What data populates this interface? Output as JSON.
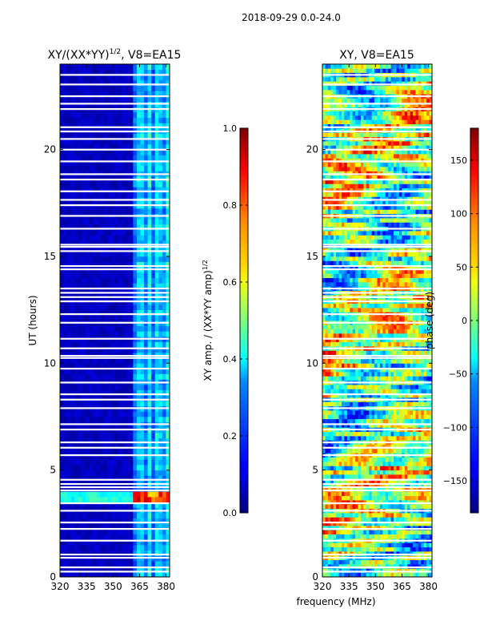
{
  "figure": {
    "suptitle": "2018-09-29 0.0-24.0",
    "shared_xlabel": "frequency (MHz)"
  },
  "colors": {
    "jet_dark_blue": "#00007f",
    "jet_blue": "#0000ff",
    "jet_cyan": "#00ffff",
    "jet_yellow": "#ffff00",
    "jet_red": "#ff0000",
    "jet_dark_red": "#7f0000"
  },
  "chart_data": [
    {
      "type": "heatmap",
      "title": "XY/(XX*YY)¹ᐟ², V8=EA15",
      "title_main": "XY/(XX*YY)",
      "title_exp": "1/2",
      "title_tail": ", V8=EA15",
      "xlabel": "",
      "ylabel": "UT (hours)",
      "xlim": [
        320,
        382
      ],
      "ylim": [
        0,
        24
      ],
      "xticks": [
        320,
        335,
        350,
        365,
        380
      ],
      "yticks": [
        0,
        5,
        10,
        15,
        20
      ],
      "colorbar": {
        "label_main": "XY amp. / (XX*YY amp)",
        "label_exp": "1/2",
        "range": [
          0.0,
          1.0
        ],
        "ticks": [
          "0.0",
          "0.2",
          "0.4",
          "0.6",
          "0.8",
          "1.0"
        ],
        "tick_values": [
          0.0,
          0.2,
          0.4,
          0.6,
          0.8,
          1.0
        ]
      },
      "value_description": "mostly low (~0.05); columns of higher amplitude (0.3-0.5) between 362 and 382 MHz; strong band (~0.7-0.9) near 3.7-3.9 UT",
      "high_amplitude_band_ut": [
        3.6,
        3.95
      ]
    },
    {
      "type": "heatmap",
      "title": "XY, V8=EA15",
      "xlabel": "frequency (MHz)",
      "ylabel": "",
      "xlim": [
        320,
        382
      ],
      "ylim": [
        0,
        24
      ],
      "xticks": [
        320,
        335,
        350,
        365,
        380
      ],
      "yticks": [
        0,
        5,
        10,
        15,
        20
      ],
      "colorbar": {
        "label": "phase (deg)",
        "range": [
          -180,
          180
        ],
        "ticks": [
          "−150",
          "−100",
          "−50",
          "0",
          "50",
          "100",
          "150"
        ],
        "tick_values": [
          -150,
          -100,
          -50,
          0,
          50,
          100,
          150
        ]
      },
      "value_description": "phase wraps across full -180..180 range with banded structure"
    }
  ],
  "gap_rows_ut": [
    0.25,
    0.45,
    0.9,
    1.05,
    1.7,
    2.25,
    2.55,
    3.1,
    3.45,
    4.05,
    4.2,
    4.35,
    4.55,
    5.7,
    6.05,
    6.3,
    6.9,
    7.15,
    7.9,
    8.3,
    8.55,
    9.1,
    9.75,
    10.25,
    10.35,
    10.7,
    11.15,
    11.9,
    12.3,
    12.9,
    13.1,
    13.3,
    13.5,
    14.4,
    14.55,
    15.25,
    15.45,
    15.55,
    16.3,
    16.9,
    17.4,
    17.65,
    18.05,
    18.6,
    18.85,
    19.45,
    20.0,
    20.5,
    20.85,
    21.05,
    21.9,
    22.15,
    22.5,
    23.05,
    23.5
  ]
}
